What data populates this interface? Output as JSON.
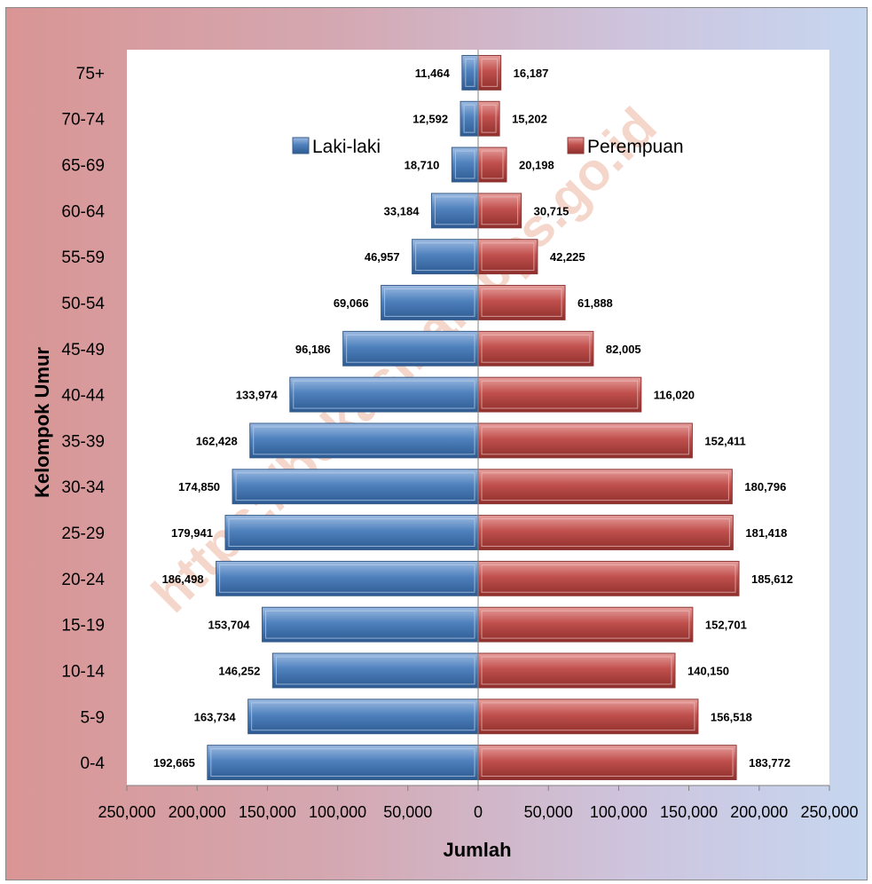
{
  "chart_data": {
    "type": "bar",
    "orientation": "horizontal",
    "layout": "population-pyramid",
    "categories": [
      "0-4",
      "5-9",
      "10-14",
      "15-19",
      "20-24",
      "25-29",
      "30-34",
      "35-39",
      "40-44",
      "45-49",
      "50-54",
      "55-59",
      "60-64",
      "65-69",
      "70-74",
      "75+"
    ],
    "series": [
      {
        "name": "Laki-laki",
        "side": "left",
        "color": "#4f81bd",
        "values": [
          192665,
          163734,
          146252,
          153704,
          186498,
          179941,
          174850,
          162428,
          133974,
          96186,
          69066,
          46957,
          33184,
          18710,
          12592,
          11464
        ],
        "labels": [
          "192,665",
          "163,734",
          "146,252",
          "153,704",
          "186,498",
          "179,941",
          "174,850",
          "162,428",
          "133,974",
          "96,186",
          "69,066",
          "46,957",
          "33,184",
          "18,710",
          "12,592",
          "11,464"
        ]
      },
      {
        "name": "Perempuan",
        "side": "right",
        "color": "#c0504d",
        "values": [
          183772,
          156518,
          140150,
          152701,
          185612,
          181418,
          180796,
          152411,
          116020,
          82005,
          61888,
          42225,
          30715,
          20198,
          15202,
          16187
        ],
        "labels": [
          "183,772",
          "156,518",
          "140,150",
          "152,701",
          "185,612",
          "181,418",
          "180,796",
          "152,411",
          "116,020",
          "82,005",
          "61,888",
          "42,225",
          "30,715",
          "20,198",
          "15,202",
          "16,187"
        ]
      }
    ],
    "xlabel": "Jumlah",
    "ylabel": "Kelompok Umur",
    "xlim": [
      -250000,
      250000
    ],
    "xticks": [
      -250000,
      -200000,
      -150000,
      -100000,
      -50000,
      0,
      50000,
      100000,
      150000,
      200000,
      250000
    ],
    "xtick_labels": [
      "250,000",
      "200,000",
      "150,000",
      "100,000",
      "50,000",
      "0",
      "50,000",
      "100,000",
      "150,000",
      "200,000",
      "250,000"
    ],
    "legend_position": "top-center",
    "grid": false,
    "watermark": "https://bekasikab.bps.go.id"
  }
}
